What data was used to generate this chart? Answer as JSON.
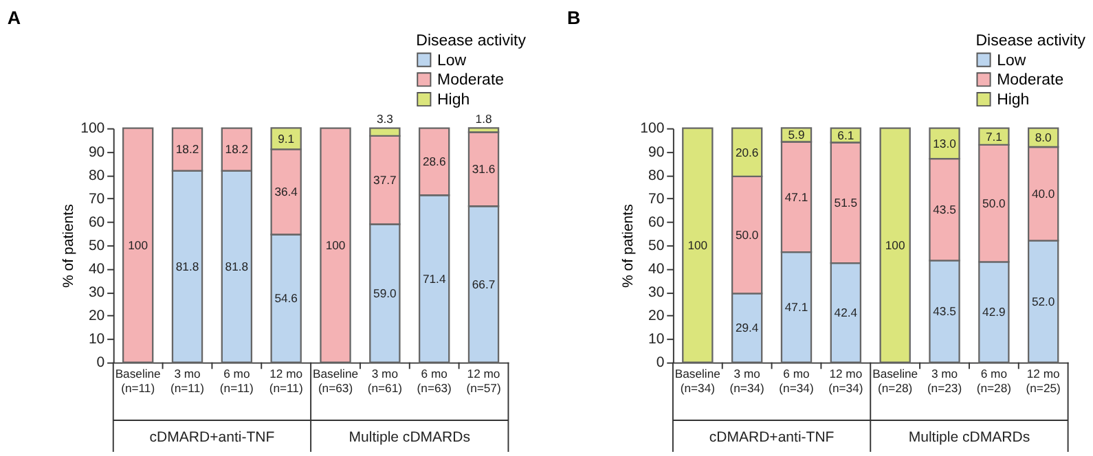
{
  "chart_data": [
    {
      "type": "bar",
      "title": "A",
      "stacked": true,
      "ylabel": "% of patients",
      "legend_title": "Disease activity",
      "legend": "top right",
      "grid": false,
      "categories": [
        "Baseline\n(n=11)",
        "3 mo\n(n=11)",
        "6 mo\n(n=11)",
        "12 mo\n(n=11)",
        "Baseline\n(n=63)",
        "3 mo\n(n=61)",
        "6 mo\n(n=63)",
        "12 mo\n(n=57)"
      ],
      "ylim": [
        0,
        100
      ],
      "yticks": [
        0,
        10,
        20,
        30,
        40,
        50,
        60,
        70,
        80,
        90,
        100
      ],
      "annotations": [
        "cDMARD+anti-TNF",
        "Multiple cDMARDs"
      ],
      "series": [
        {
          "name": "Low",
          "color": "#bcd5ee",
          "values": [
            null,
            81.8,
            81.8,
            54.6,
            null,
            59.0,
            71.4,
            66.7
          ],
          "value_labels": [
            null,
            "81.8",
            "81.8",
            "54.6",
            null,
            "59.0",
            "71.4",
            "66.7"
          ]
        },
        {
          "name": "Moderate",
          "color": "#f4b2b4",
          "values": [
            100,
            18.2,
            18.2,
            36.4,
            100,
            37.7,
            28.6,
            31.6
          ],
          "value_labels": [
            "100",
            "18.2",
            "18.2",
            "36.4",
            "100",
            "37.7",
            "28.6",
            "31.6"
          ]
        },
        {
          "name": "High",
          "color": "#dbe57c",
          "values": [
            null,
            null,
            null,
            9.1,
            null,
            3.3,
            null,
            1.8
          ],
          "value_labels": [
            null,
            null,
            null,
            "9.1",
            null,
            "3.3",
            null,
            "1.8"
          ]
        }
      ]
    },
    {
      "type": "bar",
      "title": "B",
      "stacked": true,
      "ylabel": "% of patients",
      "legend_title": "Disease activity",
      "legend": "top right",
      "grid": false,
      "categories": [
        "Baseline\n(n=34)",
        "3 mo\n(n=34)",
        "6 mo\n(n=34)",
        "12 mo\n(n=34)",
        "Baseline\n(n=28)",
        "3 mo\n(n=23)",
        "6 mo\n(n=28)",
        "12 mo\n(n=25)"
      ],
      "ylim": [
        0,
        100
      ],
      "yticks": [
        0,
        10,
        20,
        30,
        40,
        50,
        60,
        70,
        80,
        90,
        100
      ],
      "annotations": [
        "cDMARD+anti-TNF",
        "Multiple cDMARDs"
      ],
      "series": [
        {
          "name": "Low",
          "color": "#bcd5ee",
          "values": [
            null,
            29.4,
            47.1,
            42.4,
            null,
            43.5,
            42.9,
            52.0
          ],
          "value_labels": [
            null,
            "29.4",
            "47.1",
            "42.4",
            null,
            "43.5",
            "42.9",
            "52.0"
          ]
        },
        {
          "name": "Moderate",
          "color": "#f4b2b4",
          "values": [
            null,
            50.0,
            47.1,
            51.5,
            null,
            43.5,
            50.0,
            40.0
          ],
          "value_labels": [
            null,
            "50.0",
            "47.1",
            "51.5",
            null,
            "43.5",
            "50.0",
            "40.0"
          ]
        },
        {
          "name": "High",
          "color": "#dbe57c",
          "values": [
            100,
            20.6,
            5.9,
            6.1,
            100,
            13.0,
            7.1,
            8.0
          ],
          "value_labels": [
            "100",
            "20.6",
            "5.9",
            "6.1",
            "100",
            "13.0",
            "7.1",
            "8.0"
          ]
        }
      ]
    }
  ]
}
